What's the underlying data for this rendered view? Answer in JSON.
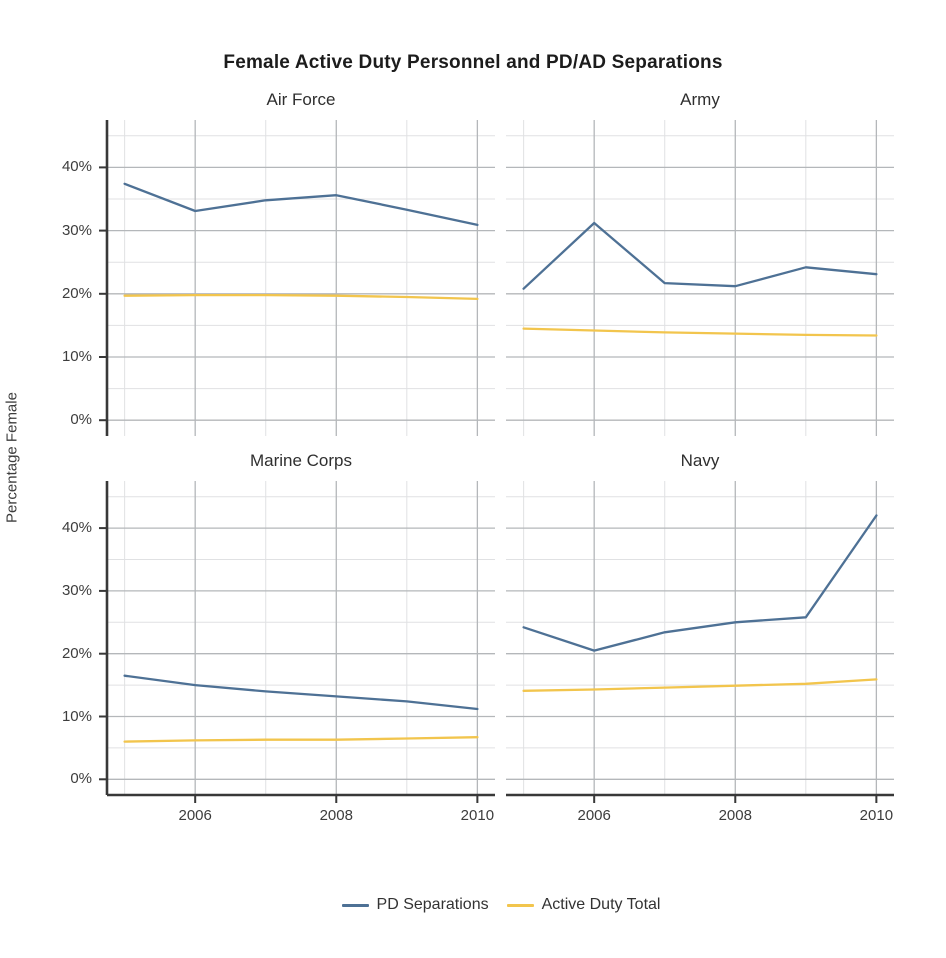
{
  "title": "Female Active Duty Personnel and PD/AD Separations",
  "y_axis_title": "Percentage Female",
  "legend": {
    "items": [
      {
        "label": "PD Separations",
        "color": "#4e7195"
      },
      {
        "label": "Active Duty Total",
        "color": "#f2c54d"
      }
    ]
  },
  "colors": {
    "grid_major": "#b4b7ba",
    "grid_minor": "#e0e1e3",
    "axis": "#383838",
    "text": "#3d3d3d"
  },
  "chart_data": {
    "type": "line",
    "title": "Female Active Duty Personnel and PD/AD Separations",
    "ylabel": "Percentage Female",
    "xlabel": "",
    "grid": true,
    "legend_position": "bottom",
    "x": [
      2005,
      2006,
      2007,
      2008,
      2009,
      2010
    ],
    "x_ticks": [
      2006,
      2008,
      2010
    ],
    "x_range": [
      2004.75,
      2010.25
    ],
    "y_ticks": [
      0,
      10,
      20,
      30,
      40
    ],
    "y_tick_labels": [
      "0%",
      "10%",
      "20%",
      "30%",
      "40%"
    ],
    "y_minor_ticks": [
      5,
      15,
      25,
      35,
      45
    ],
    "y_range": [
      -2.5,
      47.5
    ],
    "facets": [
      {
        "title": "Air Force",
        "series": [
          {
            "name": "PD Separations",
            "values": [
              37.4,
              33.1,
              34.8,
              35.6,
              33.3,
              30.9
            ]
          },
          {
            "name": "Active Duty Total",
            "values": [
              19.7,
              19.8,
              19.8,
              19.7,
              19.5,
              19.2
            ]
          }
        ]
      },
      {
        "title": "Army",
        "series": [
          {
            "name": "PD Separations",
            "values": [
              20.8,
              31.2,
              21.7,
              21.2,
              24.2,
              23.1
            ]
          },
          {
            "name": "Active Duty Total",
            "values": [
              14.5,
              14.2,
              13.9,
              13.7,
              13.5,
              13.4
            ]
          }
        ]
      },
      {
        "title": "Marine Corps",
        "series": [
          {
            "name": "PD Separations",
            "values": [
              16.5,
              15.0,
              14.0,
              13.2,
              12.4,
              11.2
            ]
          },
          {
            "name": "Active Duty Total",
            "values": [
              6.0,
              6.2,
              6.3,
              6.3,
              6.5,
              6.7
            ]
          }
        ]
      },
      {
        "title": "Navy",
        "series": [
          {
            "name": "PD Separations",
            "values": [
              24.2,
              20.5,
              23.4,
              25.0,
              25.8,
              42.0
            ]
          },
          {
            "name": "Active Duty Total",
            "values": [
              14.1,
              14.3,
              14.6,
              14.9,
              15.2,
              15.9
            ]
          }
        ]
      }
    ]
  }
}
